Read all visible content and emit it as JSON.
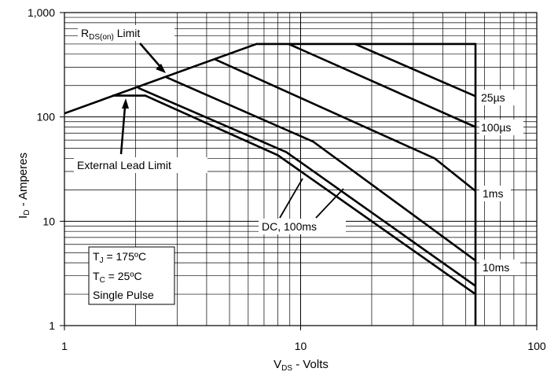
{
  "chart_data": {
    "type": "line",
    "x_scale": "log",
    "y_scale": "log",
    "xlim": [
      1,
      100
    ],
    "ylim": [
      1,
      1000
    ],
    "xlabel": {
      "main": "V",
      "sub": "DS",
      "rest": " - Volts"
    },
    "ylabel": {
      "main": "I",
      "sub": "D",
      "rest": " - Amperes"
    },
    "x_ticks": [
      {
        "value": 1,
        "label": "1"
      },
      {
        "value": 10,
        "label": "10"
      },
      {
        "value": 100,
        "label": "100"
      }
    ],
    "y_ticks": [
      {
        "value": 1,
        "label": "1"
      },
      {
        "value": 10,
        "label": "10"
      },
      {
        "value": 100,
        "label": "100"
      },
      {
        "value": 1000,
        "label": "1,000"
      }
    ],
    "grid": true,
    "series": [
      {
        "points": [
          [
            1,
            108
          ],
          [
            6.5,
            500
          ],
          [
            55,
            500
          ],
          [
            55,
            1
          ]
        ]
      },
      {
        "points": [
          [
            17,
            500
          ],
          [
            55,
            158
          ]
        ]
      },
      {
        "points": [
          [
            8.9,
            500
          ],
          [
            55,
            80
          ]
        ]
      },
      {
        "points": [
          [
            4.3,
            360
          ],
          [
            37,
            40
          ],
          [
            55,
            19.5
          ]
        ]
      },
      {
        "points": [
          [
            2.7,
            240
          ],
          [
            11.3,
            58
          ],
          [
            55,
            4.2
          ]
        ]
      },
      {
        "points": [
          [
            1.6,
            160
          ],
          [
            2.2,
            160
          ],
          [
            8,
            43
          ],
          [
            55,
            2.0
          ]
        ]
      },
      {
        "points": [
          [
            2.05,
            190
          ],
          [
            8.7,
            46
          ],
          [
            55,
            2.4
          ]
        ]
      }
    ],
    "annotations": {
      "rds_limit": {
        "main": "R",
        "sub": "DS(on)",
        "rest": " Limit"
      },
      "external_lead": "External Lead Limit",
      "label_25us": "25µs",
      "label_100us": "100µs",
      "label_1ms": "1ms",
      "label_10ms": "10ms",
      "label_dc": "DC, 100ms",
      "conditions": [
        {
          "main": "T",
          "sub": "J",
          "rest": " = 175ºC"
        },
        {
          "main": "T",
          "sub": "C",
          "rest": "  = 25ºC"
        },
        {
          "main": "Single Pulse",
          "sub": "",
          "rest": ""
        }
      ]
    }
  }
}
